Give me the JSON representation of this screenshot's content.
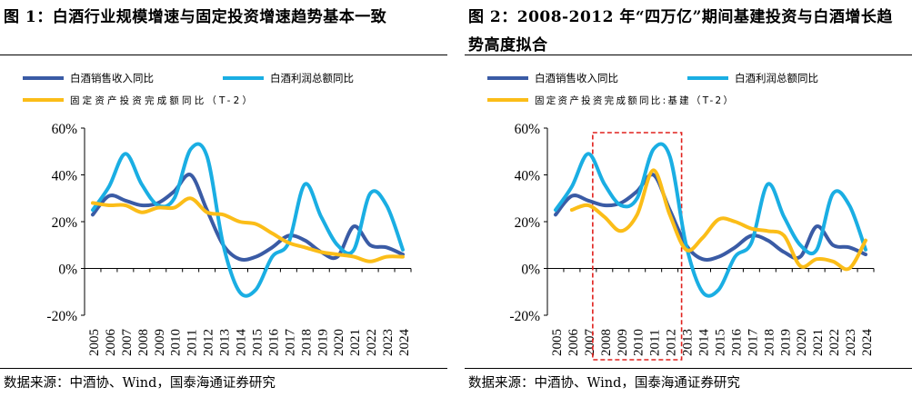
{
  "source_note": "数据来源：中酒协、Wind，国泰海通证券研究",
  "chart_data": [
    {
      "type": "line",
      "title": "图 1：白酒行业规模增速与固定投资增速趋势基本一致",
      "x": [
        "2005",
        "2006",
        "2007",
        "2008",
        "2009",
        "2010",
        "2011",
        "2012",
        "2013",
        "2014",
        "2015",
        "2016",
        "2017",
        "2018",
        "2019",
        "2020",
        "2021",
        "2022",
        "2023",
        "2024"
      ],
      "ylim": [
        -0.2,
        0.6
      ],
      "yticks": [
        "-20%",
        "0%",
        "20%",
        "40%",
        "60%"
      ],
      "ytick_values": [
        -0.2,
        0,
        0.2,
        0.4,
        0.6
      ],
      "series": [
        {
          "name": "白酒销售收入同比",
          "color": "#3a5ba5",
          "values": [
            0.23,
            0.31,
            0.29,
            0.27,
            0.28,
            0.33,
            0.4,
            0.25,
            0.1,
            0.04,
            0.05,
            0.09,
            0.14,
            0.12,
            0.07,
            0.05,
            0.18,
            0.1,
            0.09,
            0.06
          ]
        },
        {
          "name": "白酒利润总额同比",
          "color": "#1aaee3",
          "values": [
            0.25,
            0.35,
            0.49,
            0.36,
            0.27,
            0.3,
            0.51,
            0.48,
            0.1,
            -0.1,
            -0.09,
            0.05,
            0.11,
            0.36,
            0.22,
            0.1,
            0.08,
            0.32,
            0.27,
            0.08
          ]
        },
        {
          "name": "固定资产投资完成额同比（T-2）",
          "color": "#fbbd18",
          "values": [
            0.28,
            0.27,
            0.27,
            0.24,
            0.26,
            0.26,
            0.3,
            0.24,
            0.23,
            0.2,
            0.19,
            0.15,
            0.11,
            0.09,
            0.07,
            0.06,
            0.05,
            0.03,
            0.05,
            0.05
          ]
        }
      ]
    },
    {
      "type": "line",
      "title": "图 2：2008-2012 年“四万亿”期间基建投资与白酒增长趋势高度拟合",
      "x": [
        "2005",
        "2006",
        "2007",
        "2008",
        "2009",
        "2010",
        "2011",
        "2012",
        "2013",
        "2014",
        "2015",
        "2016",
        "2017",
        "2018",
        "2019",
        "2020",
        "2021",
        "2022",
        "2023",
        "2024"
      ],
      "ylim": [
        -0.2,
        0.6
      ],
      "yticks": [
        "-20%",
        "0%",
        "20%",
        "40%",
        "60%"
      ],
      "ytick_values": [
        -0.2,
        0,
        0.2,
        0.4,
        0.6
      ],
      "highlight": {
        "x_from": "2008",
        "x_to": "2012",
        "color": "#e0211d",
        "style": "dashed"
      },
      "series": [
        {
          "name": "白酒销售收入同比",
          "color": "#3a5ba5",
          "values": [
            0.23,
            0.31,
            0.29,
            0.27,
            0.28,
            0.33,
            0.4,
            0.25,
            0.1,
            0.04,
            0.05,
            0.09,
            0.14,
            0.12,
            0.07,
            0.05,
            0.18,
            0.1,
            0.09,
            0.06
          ]
        },
        {
          "name": "白酒利润总额同比",
          "color": "#1aaee3",
          "values": [
            0.25,
            0.35,
            0.49,
            0.36,
            0.27,
            0.3,
            0.51,
            0.48,
            0.1,
            -0.1,
            -0.09,
            0.05,
            0.11,
            0.36,
            0.22,
            0.1,
            0.08,
            0.32,
            0.27,
            0.08
          ]
        },
        {
          "name": "固定资产投资完成额同比:基建（T-2）",
          "color": "#fbbd18",
          "values": [
            null,
            0.25,
            0.27,
            0.22,
            0.16,
            0.23,
            0.42,
            0.23,
            0.08,
            0.13,
            0.21,
            0.2,
            0.17,
            0.16,
            0.14,
            0.01,
            0.04,
            0.03,
            0.0,
            0.12
          ]
        }
      ]
    }
  ]
}
